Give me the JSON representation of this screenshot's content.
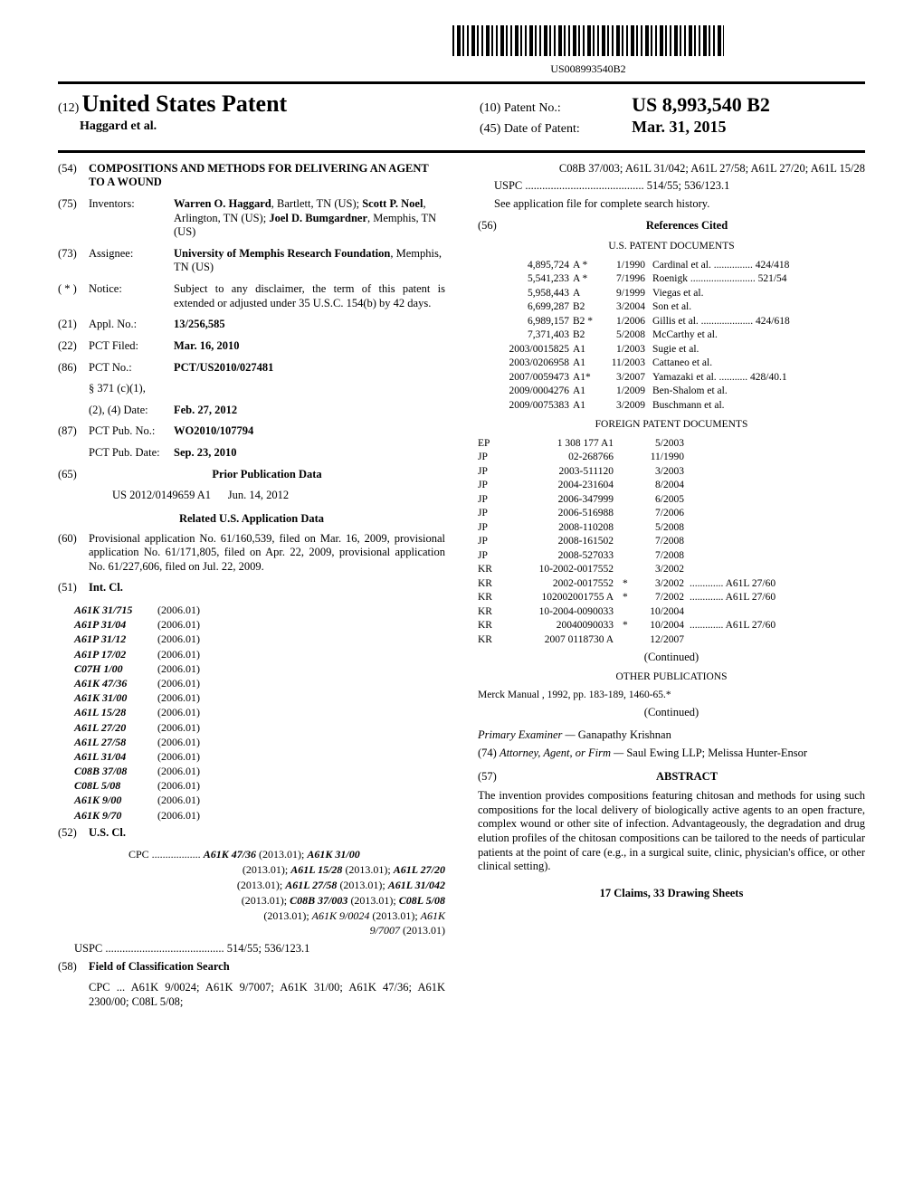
{
  "barcode_text": "US008993540B2",
  "header": {
    "prefix": "(12)",
    "title": "United States Patent",
    "authors": "Haggard et al.",
    "patent_no_label": "(10) Patent No.:",
    "patent_no": "US 8,993,540 B2",
    "date_label": "(45) Date of Patent:",
    "date": "Mar. 31, 2015"
  },
  "left": {
    "f54_num": "(54)",
    "f54_title": "COMPOSITIONS AND METHODS FOR DELIVERING AN AGENT TO A WOUND",
    "f75_num": "(75)",
    "f75_lbl": "Inventors:",
    "f75_body": "Warren O. Haggard, Bartlett, TN (US); Scott P. Noel, Arlington, TN (US); Joel D. Bumgardner, Memphis, TN (US)",
    "f73_num": "(73)",
    "f73_lbl": "Assignee:",
    "f73_body": "University of Memphis Research Foundation, Memphis, TN (US)",
    "fnot_num": "( * )",
    "fnot_lbl": "Notice:",
    "fnot_body": "Subject to any disclaimer, the term of this patent is extended or adjusted under 35 U.S.C. 154(b) by 42 days.",
    "f21_num": "(21)",
    "f21_lbl": "Appl. No.:",
    "f21_val": "13/256,585",
    "f22_num": "(22)",
    "f22_lbl": "PCT Filed:",
    "f22_val": "Mar. 16, 2010",
    "f86_num": "(86)",
    "f86_lbl": "PCT No.:",
    "f86_val": "PCT/US2010/027481",
    "f86_para": "§ 371 (c)(1),",
    "f86_date_lbl": "(2), (4) Date:",
    "f86_date": "Feb. 27, 2012",
    "f87_num": "(87)",
    "f87_lbl": "PCT Pub. No.:",
    "f87_val": "WO2010/107794",
    "f87_pub_lbl": "PCT Pub. Date:",
    "f87_pub": "Sep. 23, 2010",
    "f65_num": "(65)",
    "f65_title": "Prior Publication Data",
    "f65_pubno": "US 2012/0149659 A1",
    "f65_pubdate": "Jun. 14, 2012",
    "related_title": "Related U.S. Application Data",
    "f60_num": "(60)",
    "f60_body": "Provisional application No. 61/160,539, filed on Mar. 16, 2009, provisional application No. 61/171,805, filed on Apr. 22, 2009, provisional application No. 61/227,606, filed on Jul. 22, 2009.",
    "f51_num": "(51)",
    "f51_lbl": "Int. Cl.",
    "intcl": [
      [
        "A61K 31/715",
        "(2006.01)"
      ],
      [
        "A61P 31/04",
        "(2006.01)"
      ],
      [
        "A61P 31/12",
        "(2006.01)"
      ],
      [
        "A61P 17/02",
        "(2006.01)"
      ],
      [
        "C07H 1/00",
        "(2006.01)"
      ],
      [
        "A61K 47/36",
        "(2006.01)"
      ],
      [
        "A61K 31/00",
        "(2006.01)"
      ],
      [
        "A61L 15/28",
        "(2006.01)"
      ],
      [
        "A61L 27/20",
        "(2006.01)"
      ],
      [
        "A61L 27/58",
        "(2006.01)"
      ],
      [
        "A61L 31/04",
        "(2006.01)"
      ],
      [
        "C08B 37/08",
        "(2006.01)"
      ],
      [
        "C08L 5/08",
        "(2006.01)"
      ],
      [
        "A61K 9/00",
        "(2006.01)"
      ],
      [
        "A61K 9/70",
        "(2006.01)"
      ]
    ],
    "f52_num": "(52)",
    "f52_lbl": "U.S. Cl.",
    "cpc_prefix": "CPC ..................",
    "cpc": " A61K 47/36 (2013.01); A61K 31/00 (2013.01); A61L 15/28 (2013.01); A61L 27/20 (2013.01); A61L 27/58 (2013.01); A61L 31/042 (2013.01); C08B 37/003 (2013.01); C08L 5/08 (2013.01); A61K 9/0024 (2013.01); A61K 9/7007 (2013.01)",
    "uspc_line": "USPC .......................................... 514/55; 536/123.1",
    "f58_num": "(58)",
    "f58_lbl": "Field of Classification Search",
    "f58_cpc": "CPC ... A61K 9/0024; A61K 9/7007; A61K 31/00; A61K 47/36; A61K 2300/00; C08L 5/08;"
  },
  "right": {
    "f58_cont": "C08B 37/003; A61L 31/042; A61L 27/58; A61L 27/20; A61L 15/28",
    "uspc": "USPC .......................................... 514/55; 536/123.1",
    "seefile": "See application file for complete search history.",
    "f56_num": "(56)",
    "f56_title": "References Cited",
    "uspd_title": "U.S. PATENT DOCUMENTS",
    "us_refs": [
      [
        "4,895,724",
        "A *",
        "1/1990",
        "Cardinal et al. ............... 424/418"
      ],
      [
        "5,541,233",
        "A *",
        "7/1996",
        "Roenigk ......................... 521/54"
      ],
      [
        "5,958,443",
        "A",
        "9/1999",
        "Viegas et al."
      ],
      [
        "6,699,287",
        "B2",
        "3/2004",
        "Son et al."
      ],
      [
        "6,989,157",
        "B2 *",
        "1/2006",
        "Gillis et al. .................... 424/618"
      ],
      [
        "7,371,403",
        "B2",
        "5/2008",
        "McCarthy et al."
      ],
      [
        "2003/0015825",
        "A1",
        "1/2003",
        "Sugie et al."
      ],
      [
        "2003/0206958",
        "A1",
        "11/2003",
        "Cattaneo et al."
      ],
      [
        "2007/0059473",
        "A1*",
        "3/2007",
        "Yamazaki et al. ........... 428/40.1"
      ],
      [
        "2009/0004276",
        "A1",
        "1/2009",
        "Ben-Shalom et al."
      ],
      [
        "2009/0075383",
        "A1",
        "3/2009",
        "Buschmann et al."
      ]
    ],
    "fpd_title": "FOREIGN PATENT DOCUMENTS",
    "fp_refs": [
      [
        "EP",
        "1 308 177 A1",
        "",
        "5/2003",
        ""
      ],
      [
        "JP",
        "02-268766",
        "",
        "11/1990",
        ""
      ],
      [
        "JP",
        "2003-511120",
        "",
        "3/2003",
        ""
      ],
      [
        "JP",
        "2004-231604",
        "",
        "8/2004",
        ""
      ],
      [
        "JP",
        "2006-347999",
        "",
        "6/2005",
        ""
      ],
      [
        "JP",
        "2006-516988",
        "",
        "7/2006",
        ""
      ],
      [
        "JP",
        "2008-110208",
        "",
        "5/2008",
        ""
      ],
      [
        "JP",
        "2008-161502",
        "",
        "7/2008",
        ""
      ],
      [
        "JP",
        "2008-527033",
        "",
        "7/2008",
        ""
      ],
      [
        "KR",
        "10-2002-0017552",
        "",
        "3/2002",
        ""
      ],
      [
        "KR",
        "2002-0017552",
        "*",
        "3/2002",
        "............. A61L 27/60"
      ],
      [
        "KR",
        "102002001755 A",
        "*",
        "7/2002",
        "............. A61L 27/60"
      ],
      [
        "KR",
        "10-2004-0090033",
        "",
        "10/2004",
        ""
      ],
      [
        "KR",
        "20040090033",
        "*",
        "10/2004",
        "............. A61L 27/60"
      ],
      [
        "KR",
        "2007 0118730 A",
        "",
        "12/2007",
        ""
      ]
    ],
    "continued": "(Continued)",
    "otherpub_title": "OTHER PUBLICATIONS",
    "otherpub": "Merck Manual , 1992, pp. 183-189, 1460-65.*",
    "examiner_lbl": "Primary Examiner —",
    "examiner": "Ganapathy Krishnan",
    "atty_num": "(74)",
    "atty_lbl": "Attorney, Agent, or Firm —",
    "atty": "Saul Ewing LLP; Melissa Hunter-Ensor",
    "abs_num": "(57)",
    "abs_title": "ABSTRACT",
    "abstract": "The invention provides compositions featuring chitosan and methods for using such compositions for the local delivery of biologically active agents to an open fracture, complex wound or other site of infection. Advantageously, the degradation and drug elution profiles of the chitosan compositions can be tailored to the needs of particular patients at the point of care (e.g., in a surgical suite, clinic, physician's office, or other clinical setting).",
    "claims": "17 Claims, 33 Drawing Sheets"
  }
}
